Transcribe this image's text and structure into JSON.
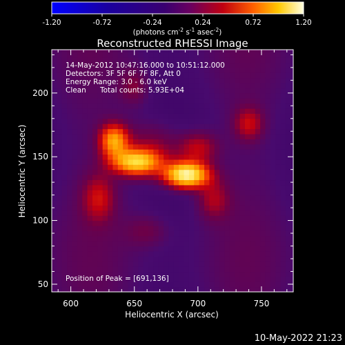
{
  "chart_data": {
    "type": "heatmap",
    "title": "Reconstructed RHESSI Image",
    "xlabel": "Heliocentric X (arcsec)",
    "ylabel": "Heliocentric Y (arcsec)",
    "xlim": [
      585,
      775
    ],
    "ylim": [
      44,
      234
    ],
    "xticks": [
      600,
      650,
      700,
      750
    ],
    "yticks": [
      50,
      100,
      150,
      200
    ],
    "colorbar": {
      "min": -1.2,
      "max": 1.2,
      "ticks": [
        "-1.20",
        "-0.72",
        "-0.24",
        "0.24",
        "0.72",
        "1.20"
      ],
      "label_main": "(photons cm",
      "label_exp1": "-2",
      "label_mid": " s",
      "label_exp2": "-1",
      "label_end": " asec",
      "label_exp3": "-2",
      "label_close": ")",
      "colormap": "RHESSI hot"
    },
    "annotations": {
      "line1": "14-May-2012 10:47:16.000 to 10:51:12.000",
      "line2": "Detectors: 3F 5F 6F 7F 8F, Att 0",
      "line3": "Energy Range: 3.0 - 6.0 keV",
      "line4_method": "Clean",
      "line4_counts": "Total counts: 5.93E+04",
      "peak": "Position of Peak = [691,136]"
    },
    "peak": {
      "x": 691,
      "y": 136,
      "value": 1.2
    },
    "sources": [
      {
        "x": 691,
        "y": 136,
        "sx": 12,
        "sy": 7,
        "amp": 1.2
      },
      {
        "x": 651,
        "y": 146,
        "sx": 13,
        "sy": 7,
        "amp": 0.88
      },
      {
        "x": 634,
        "y": 163,
        "sx": 8,
        "sy": 9,
        "amp": 0.75
      },
      {
        "x": 665,
        "y": 156,
        "sx": 16,
        "sy": 15,
        "amp": 0.32
      },
      {
        "x": 700,
        "y": 157,
        "sx": 11,
        "sy": 9,
        "amp": 0.38
      },
      {
        "x": 622,
        "y": 118,
        "sx": 9,
        "sy": 13,
        "amp": 0.34
      },
      {
        "x": 712,
        "y": 117,
        "sx": 9,
        "sy": 11,
        "amp": 0.3
      },
      {
        "x": 740,
        "y": 176,
        "sx": 8,
        "sy": 9,
        "amp": 0.34
      },
      {
        "x": 650,
        "y": 205,
        "sx": 8,
        "sy": 10,
        "amp": 0.22
      },
      {
        "x": 660,
        "y": 92,
        "sx": 12,
        "sy": 9,
        "amp": 0.18
      }
    ]
  },
  "footer": {
    "timestamp": "10-May-2022 21:23"
  }
}
